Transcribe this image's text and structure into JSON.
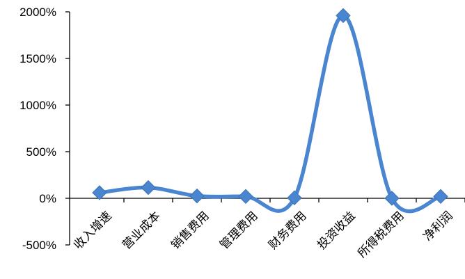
{
  "chart_data": {
    "type": "line",
    "smooth": true,
    "categories": [
      "收入增速",
      "营业成本",
      "销售费用",
      "管理费用",
      "财务费用",
      "投资收益",
      "所得税费用",
      "净利润"
    ],
    "series": [
      {
        "values": [
          60,
          115,
          25,
          20,
          5,
          1960,
          0,
          20
        ]
      }
    ],
    "y_ticks": [
      "-500%",
      "0%",
      "500%",
      "1000%",
      "1500%",
      "2000%"
    ],
    "ylim": [
      -500,
      2000
    ],
    "y_unit": "%",
    "grid": false,
    "legend": "none",
    "colors": {
      "line": "#4A86D0",
      "marker": "#4A86D0",
      "axis": "#000000",
      "text": "#000000"
    }
  }
}
